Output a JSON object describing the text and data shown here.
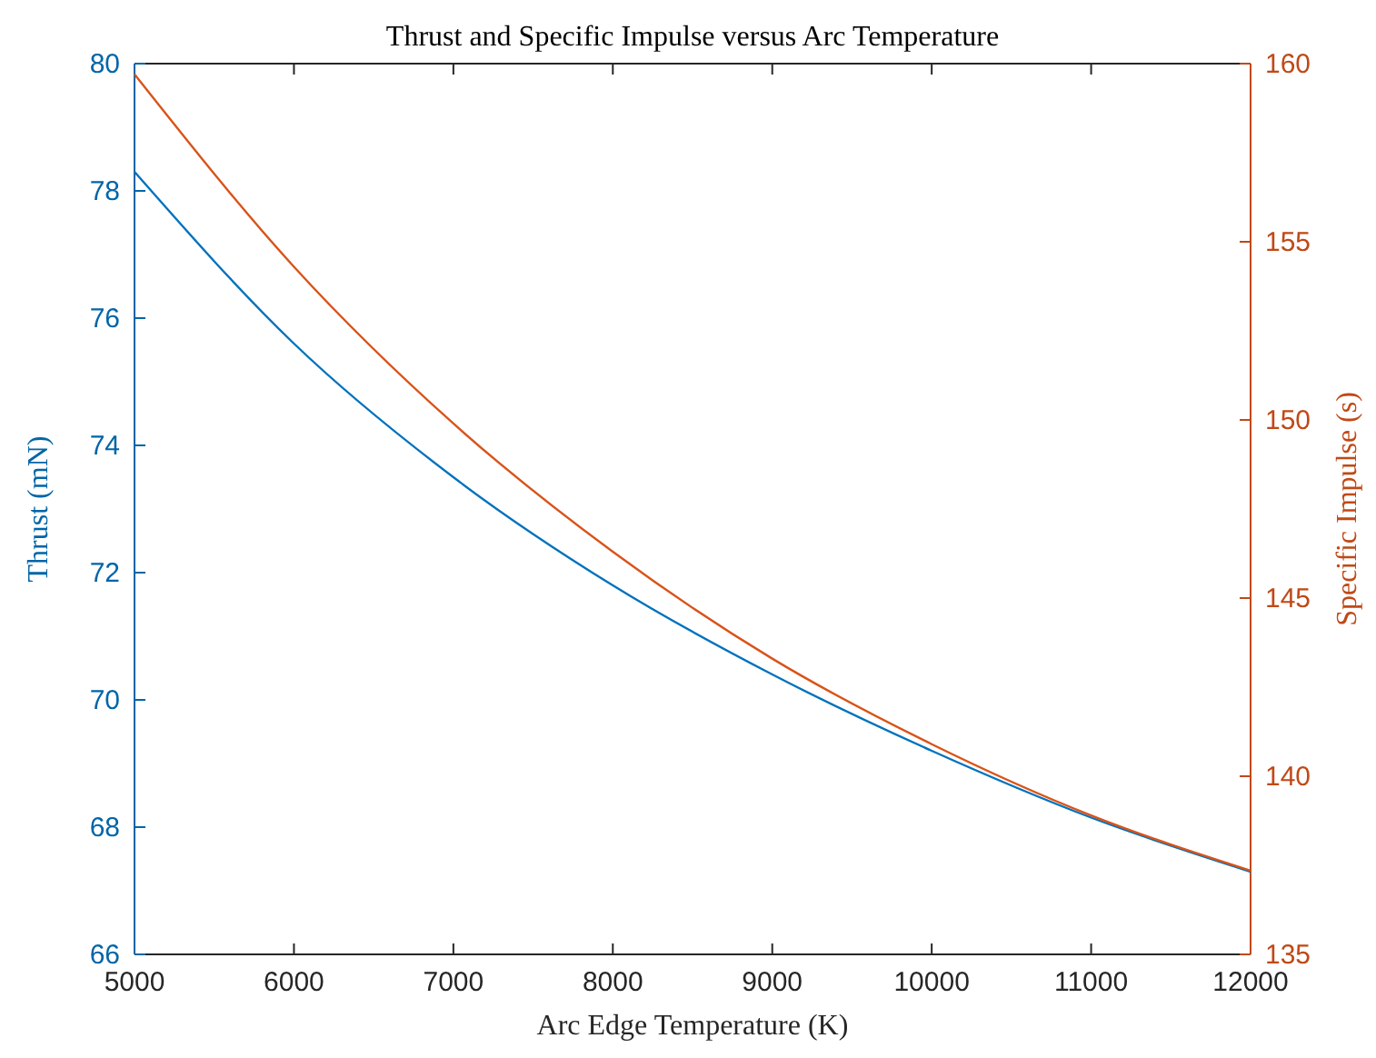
{
  "chart_data": {
    "type": "line",
    "title": "Thrust and Specific Impulse versus Arc Temperature",
    "xlabel": "Arc Edge Temperature (K)",
    "ylabel": "Thrust (mN)",
    "y2label": "Specific Impulse (s)",
    "x": [
      5000,
      6000,
      7000,
      8000,
      9000,
      10000,
      11000,
      12000
    ],
    "xlim": [
      5000,
      12000
    ],
    "xticks": [
      5000,
      6000,
      7000,
      8000,
      9000,
      10000,
      11000,
      12000
    ],
    "ylim": [
      66,
      80
    ],
    "yticks": [
      66,
      68,
      70,
      72,
      74,
      76,
      78,
      80
    ],
    "y2lim": [
      135,
      160
    ],
    "y2ticks": [
      135,
      140,
      145,
      150,
      155,
      160
    ],
    "grid": false,
    "line_style": "solid",
    "series": [
      {
        "color": "#0072bd",
        "axis": "y",
        "values": [
          78.3,
          75.6,
          73.5,
          71.8,
          70.4,
          69.2,
          68.15,
          67.3
        ]
      },
      {
        "color": "#d95319",
        "axis": "y2",
        "values": [
          159.7,
          154.3,
          149.9,
          146.3,
          143.3,
          140.9,
          138.9,
          137.35
        ]
      }
    ]
  }
}
